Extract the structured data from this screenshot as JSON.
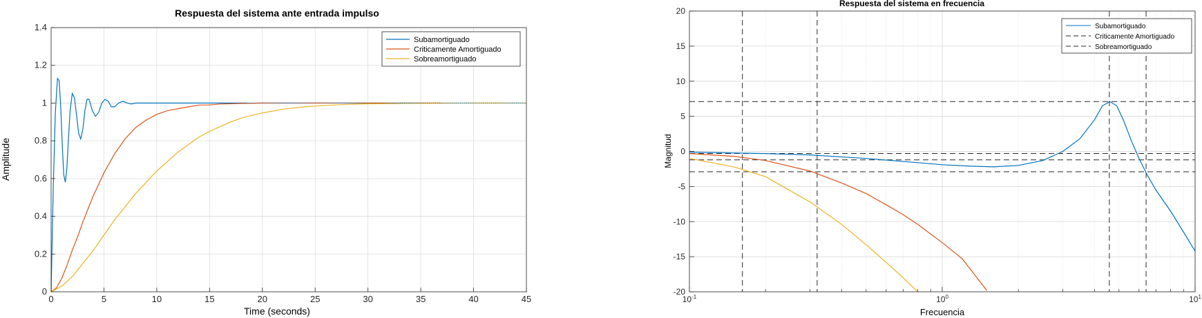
{
  "chart_data": [
    {
      "type": "line",
      "title": "Respuesta del sistema ante entrada impulso",
      "xlabel": "Time (seconds)",
      "ylabel": "Amplitude",
      "xlim": [
        0,
        45
      ],
      "ylim": [
        0,
        1.4
      ],
      "xticks": [
        "0",
        "5",
        "10",
        "15",
        "20",
        "25",
        "30",
        "35",
        "40",
        "45"
      ],
      "yticks": [
        "0",
        "0.2",
        "0.4",
        "0.6",
        "0.8",
        "1",
        "1.2",
        "1.4"
      ],
      "grid": true,
      "legend_position": "top-right",
      "series": [
        {
          "name": "Subamortiguado",
          "color": "#0072BD",
          "x": [
            0,
            0.2,
            0.4,
            0.6,
            0.75,
            0.9,
            1.05,
            1.2,
            1.35,
            1.5,
            1.65,
            1.8,
            2.0,
            2.2,
            2.4,
            2.6,
            2.8,
            3.0,
            3.2,
            3.4,
            3.6,
            3.9,
            4.2,
            4.5,
            4.8,
            5.1,
            5.4,
            5.7,
            6.0,
            6.4,
            6.8,
            7.2,
            7.6,
            8.0,
            8.5,
            9.0,
            10,
            11,
            12,
            14,
            16,
            18.5
          ],
          "y": [
            0,
            0.55,
            0.95,
            1.13,
            1.12,
            0.99,
            0.78,
            0.62,
            0.58,
            0.66,
            0.82,
            0.96,
            1.05,
            1.03,
            0.94,
            0.84,
            0.81,
            0.86,
            0.96,
            1.02,
            1.02,
            0.96,
            0.93,
            0.95,
            1.0,
            1.02,
            1.01,
            0.98,
            0.98,
            1.0,
            1.01,
            1.0,
            0.995,
            1.0,
            1.0,
            1.0,
            1.0,
            1.0,
            1.0,
            1.0,
            1.0,
            1.0
          ]
        },
        {
          "name": "Criticamente Amortiguado",
          "color": "#D95319",
          "x": [
            0,
            0.5,
            1,
            1.5,
            2,
            2.5,
            3,
            3.5,
            4,
            5,
            6,
            7,
            8,
            9,
            10,
            11,
            12,
            13,
            14,
            15,
            16,
            18,
            20,
            22,
            25,
            28,
            32,
            37
          ],
          "y": [
            0,
            0.02,
            0.07,
            0.14,
            0.22,
            0.29,
            0.37,
            0.44,
            0.51,
            0.63,
            0.73,
            0.81,
            0.87,
            0.91,
            0.94,
            0.96,
            0.97,
            0.98,
            0.99,
            0.99,
            0.995,
            0.998,
            1.0,
            1.0,
            1.0,
            1.0,
            1.0,
            1.0
          ]
        },
        {
          "name": "Sobreamortiguado",
          "color": "#EDB120",
          "x": [
            0,
            1,
            2,
            3,
            4,
            5,
            6,
            7,
            8,
            9,
            10,
            11,
            12,
            13,
            14,
            15,
            16,
            17,
            18,
            19,
            20,
            22,
            24,
            26,
            28,
            30,
            33,
            36,
            40,
            45
          ],
          "y": [
            0,
            0.03,
            0.08,
            0.15,
            0.22,
            0.3,
            0.38,
            0.45,
            0.52,
            0.58,
            0.64,
            0.69,
            0.74,
            0.78,
            0.82,
            0.85,
            0.875,
            0.9,
            0.92,
            0.935,
            0.948,
            0.968,
            0.98,
            0.988,
            0.993,
            0.996,
            0.998,
            0.999,
            1.0,
            1.0
          ]
        }
      ]
    },
    {
      "type": "line",
      "title": "Respuesta del sistema en frecuencia",
      "xlabel": "Frecuencia",
      "ylabel": "Magnitud",
      "xscale": "log",
      "xlim": [
        0.1,
        10
      ],
      "ylim": [
        -20,
        20
      ],
      "yticks": [
        "-20",
        "-15",
        "-10",
        "-5",
        "0",
        "5",
        "10",
        "15",
        "20"
      ],
      "grid": true,
      "legend_position": "top-right",
      "series": [
        {
          "name": "Subamortiguado",
          "color": "#0072BD",
          "style": "solid",
          "x": [
            0.1,
            0.2,
            0.3,
            0.5,
            0.8,
            1.0,
            1.3,
            1.6,
            2.0,
            2.5,
            3.0,
            3.5,
            4.0,
            4.3,
            4.6,
            4.9,
            5.2,
            5.6,
            6.0,
            6.5,
            7.0,
            8.0,
            9.0,
            10
          ],
          "y": [
            -0.1,
            -0.3,
            -0.5,
            -1.0,
            -1.6,
            -1.9,
            -2.1,
            -2.2,
            -2.0,
            -1.3,
            0.0,
            1.8,
            4.5,
            6.5,
            7.1,
            6.5,
            4.5,
            1.5,
            -1.0,
            -3.5,
            -5.5,
            -8.5,
            -11.5,
            -14.2
          ]
        },
        {
          "name": "Criticamente Amortiguado",
          "color": "#D95319",
          "style": "solid",
          "x": [
            0.1,
            0.15,
            0.2,
            0.3,
            0.4,
            0.5,
            0.6,
            0.7,
            0.8,
            1.0,
            1.2,
            1.5
          ],
          "y": [
            -0.3,
            -0.7,
            -1.3,
            -2.8,
            -4.5,
            -6.0,
            -7.6,
            -9.0,
            -10.4,
            -13.0,
            -15.3,
            -19.8
          ]
        },
        {
          "name": "Sobreamortiguado",
          "color": "#EDB120",
          "style": "solid",
          "x": [
            0.1,
            0.15,
            0.2,
            0.3,
            0.4,
            0.5,
            0.6,
            0.7,
            0.8
          ],
          "y": [
            -1.0,
            -2.2,
            -3.6,
            -7.2,
            -10.4,
            -13.3,
            -15.8,
            -18.0,
            -20.0
          ]
        },
        {
          "name": "Criticamente Amortiguado",
          "color": "#262626",
          "style": "dashed",
          "legend_only": true,
          "x": [],
          "y": []
        },
        {
          "name": "Sobreamortiguado",
          "color": "#262626",
          "style": "dashed",
          "legend_only": true,
          "x": [],
          "y": []
        }
      ],
      "legend_entries": [
        {
          "label": "Subamortiguado",
          "style": "solid",
          "color": "#0072BD"
        },
        {
          "label": "Criticamente Amortiguado",
          "style": "dashed",
          "color": "#262626"
        },
        {
          "label": "Sobreamortiguado",
          "style": "dashed",
          "color": "#262626"
        }
      ],
      "reference_lines": {
        "horizontal": [
          7.1,
          -0.3,
          -1.2,
          -2.9
        ],
        "vertical": [
          0.162,
          0.32,
          4.58,
          6.4
        ]
      }
    }
  ]
}
